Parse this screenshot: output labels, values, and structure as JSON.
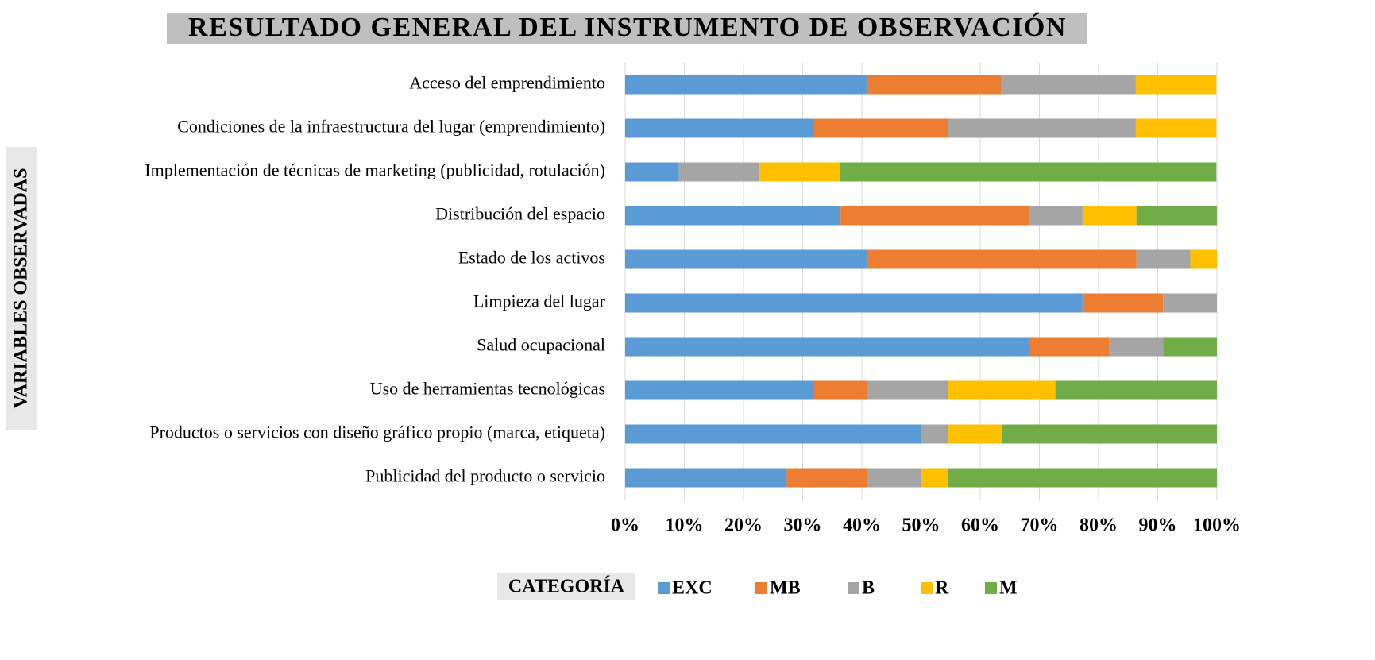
{
  "chart_data": {
    "type": "stacked_barh",
    "title": "RESULTADO GENERAL DEL INSTRUMENTO DE OBSERVACIÓN",
    "y_label": "VARIABLES OBSERVADAS",
    "legend_title": "CATEGORÍA",
    "legend": "bottom",
    "grid": true,
    "categories": [
      "Acceso del emprendimiento",
      "Condiciones de la infraestructura del lugar (emprendimiento)",
      "Implementación de técnicas de marketing (publicidad, rotulación)",
      "Distribución del espacio",
      "Estado de los activos",
      "Limpieza del lugar",
      "Salud ocupacional",
      "Uso de herramientas tecnológicas",
      "Productos o servicios con diseño gráfico propio (marca, etiqueta)",
      "Publicidad del producto o servicio"
    ],
    "series": [
      {
        "name": "EXC",
        "color": "#5b9bd5",
        "values": [
          40.9,
          31.8,
          9.1,
          36.4,
          40.9,
          77.3,
          68.2,
          31.8,
          50,
          27.3
        ]
      },
      {
        "name": "MB",
        "color": "#ed7d31",
        "values": [
          22.7,
          22.7,
          0,
          31.8,
          45.5,
          13.6,
          13.6,
          9.1,
          0,
          13.6
        ]
      },
      {
        "name": "B",
        "color": "#a5a5a5",
        "values": [
          22.7,
          31.8,
          13.6,
          9.1,
          9.1,
          9.1,
          9.1,
          13.6,
          4.5,
          9.1
        ]
      },
      {
        "name": "R",
        "color": "#ffc000",
        "values": [
          13.6,
          13.6,
          13.6,
          9.1,
          4.5,
          0,
          0,
          18.2,
          9.1,
          4.5
        ]
      },
      {
        "name": "M",
        "color": "#70ad47",
        "values": [
          0,
          0,
          63.6,
          13.6,
          0,
          0,
          9.1,
          27.3,
          36.4,
          45.5
        ]
      }
    ],
    "xlim": [
      0,
      100
    ],
    "xticks": [
      {
        "value": 0,
        "label": "0%"
      },
      {
        "value": 10,
        "label": "10%"
      },
      {
        "value": 20,
        "label": "20%"
      },
      {
        "value": 30,
        "label": "30%"
      },
      {
        "value": 40,
        "label": "40%"
      },
      {
        "value": 50,
        "label": "50%"
      },
      {
        "value": 60,
        "label": "60%"
      },
      {
        "value": 70,
        "label": "70%"
      },
      {
        "value": 80,
        "label": "80%"
      },
      {
        "value": 90,
        "label": "90%"
      },
      {
        "value": 100,
        "label": "100%"
      }
    ]
  }
}
